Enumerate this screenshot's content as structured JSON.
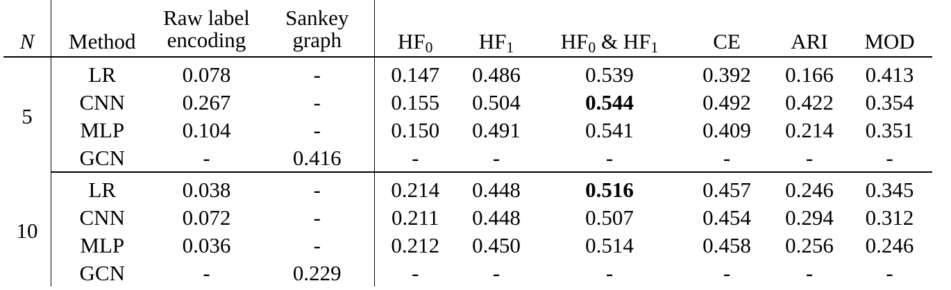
{
  "headers": {
    "n": "N",
    "method": "Method",
    "raw_line1": "Raw label",
    "raw_line2": "encoding",
    "sankey_line1": "Sankey",
    "sankey_line2": "graph",
    "hf0_base": "HF",
    "hf0_sub": "0",
    "hf1_base": "HF",
    "hf1_sub": "1",
    "hfb_base1": "HF",
    "hfb_sub1": "0",
    "hfb_amp": " & HF",
    "hfb_sub2": "1",
    "ce": "CE",
    "ari": "ARI",
    "mod": "MOD"
  },
  "groups": [
    {
      "n": "5",
      "rows": [
        {
          "method": "LR",
          "raw": "0.078",
          "sankey": "-",
          "hf0": "0.147",
          "hf1": "0.486",
          "hfb": "0.539",
          "ce": "0.392",
          "ari": "0.166",
          "mod": "0.413"
        },
        {
          "method": "CNN",
          "raw": "0.267",
          "sankey": "-",
          "hf0": "0.155",
          "hf1": "0.504",
          "hfb": "0.544",
          "ce": "0.492",
          "ari": "0.422",
          "mod": "0.354"
        },
        {
          "method": "MLP",
          "raw": "0.104",
          "sankey": "-",
          "hf0": "0.150",
          "hf1": "0.491",
          "hfb": "0.541",
          "ce": "0.409",
          "ari": "0.214",
          "mod": "0.351"
        },
        {
          "method": "GCN",
          "raw": "-",
          "sankey": "0.416",
          "hf0": "-",
          "hf1": "-",
          "hfb": "-",
          "ce": "-",
          "ari": "-",
          "mod": "-"
        }
      ]
    },
    {
      "n": "10",
      "rows": [
        {
          "method": "LR",
          "raw": "0.038",
          "sankey": "-",
          "hf0": "0.214",
          "hf1": "0.448",
          "hfb": "0.516",
          "ce": "0.457",
          "ari": "0.246",
          "mod": "0.345"
        },
        {
          "method": "CNN",
          "raw": "0.072",
          "sankey": "-",
          "hf0": "0.211",
          "hf1": "0.448",
          "hfb": "0.507",
          "ce": "0.454",
          "ari": "0.294",
          "mod": "0.312"
        },
        {
          "method": "MLP",
          "raw": "0.036",
          "sankey": "-",
          "hf0": "0.212",
          "hf1": "0.450",
          "hfb": "0.514",
          "ce": "0.458",
          "ari": "0.256",
          "mod": "0.246"
        },
        {
          "method": "GCN",
          "raw": "-",
          "sankey": "0.229",
          "hf0": "-",
          "hf1": "-",
          "hfb": "-",
          "ce": "-",
          "ari": "-",
          "mod": "-"
        }
      ]
    }
  ]
}
